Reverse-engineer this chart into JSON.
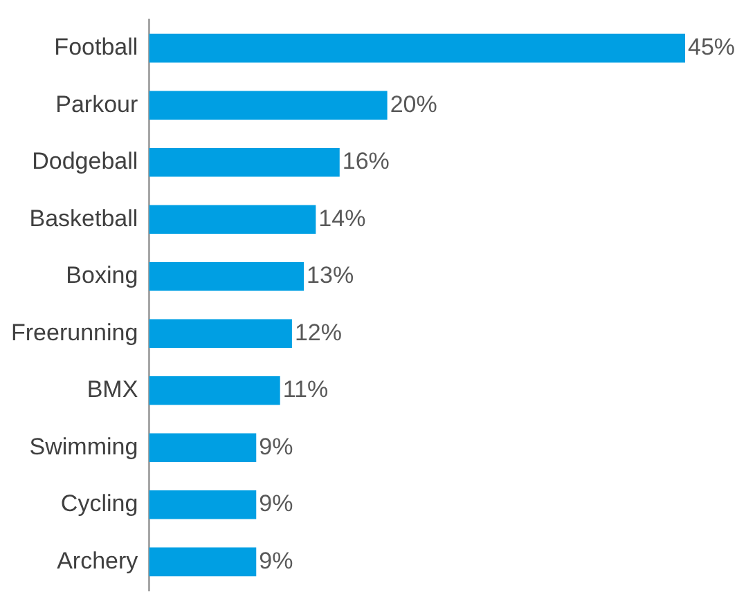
{
  "chart_data": {
    "type": "bar",
    "orientation": "horizontal",
    "categories": [
      "Football",
      "Parkour",
      "Dodgeball",
      "Basketball",
      "Boxing",
      "Freerunning",
      "BMX",
      "Swimming",
      "Cycling",
      "Archery"
    ],
    "values": [
      45,
      20,
      16,
      14,
      13,
      12,
      11,
      9,
      9,
      9
    ],
    "value_labels": [
      "45%",
      "20%",
      "16%",
      "14%",
      "13%",
      "12%",
      "11%",
      "9%",
      "9%",
      "9%"
    ],
    "color": "#009fe3"
  }
}
